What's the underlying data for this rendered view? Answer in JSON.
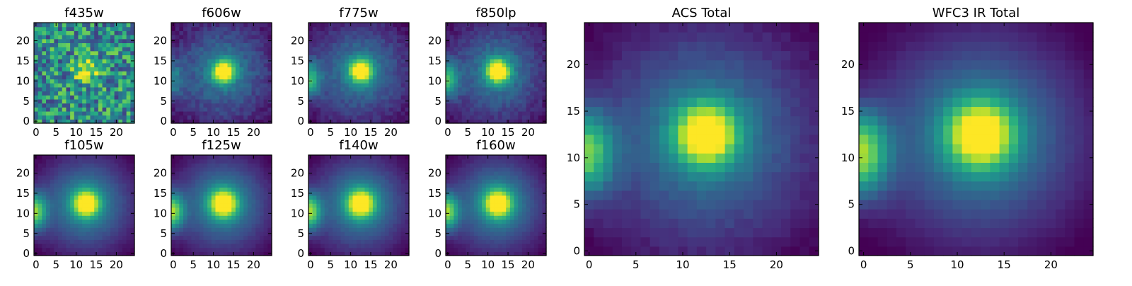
{
  "chart_data": [
    {
      "type": "heatmap",
      "title": "f435w",
      "xlim": [
        0,
        24
      ],
      "ylim": [
        0,
        24
      ],
      "xticks": [
        "0",
        "5",
        "10",
        "15",
        "20"
      ],
      "yticks": [
        "0",
        "5",
        "10",
        "15",
        "20"
      ],
      "colormap": "viridis",
      "grid": false,
      "content": {
        "src_x": 12.5,
        "src_y": 12.5,
        "src_sigma": 2.0,
        "src_amp": 0.55,
        "neighbor_amp": 0.0,
        "noise": 0.62,
        "background": 0.5,
        "halo": 0.0
      }
    },
    {
      "type": "heatmap",
      "title": "f606w",
      "xlim": [
        0,
        24
      ],
      "ylim": [
        0,
        24
      ],
      "xticks": [
        "0",
        "5",
        "10",
        "15",
        "20"
      ],
      "yticks": [
        "0",
        "5",
        "10",
        "15",
        "20"
      ],
      "colormap": "viridis",
      "grid": false,
      "content": {
        "src_x": 12.5,
        "src_y": 12.5,
        "src_sigma": 1.9,
        "src_amp": 0.85,
        "neighbor_amp": 0.35,
        "noise": 0.12,
        "background": 0.18,
        "halo": 0.25
      }
    },
    {
      "type": "heatmap",
      "title": "f775w",
      "xlim": [
        0,
        24
      ],
      "ylim": [
        0,
        24
      ],
      "xticks": [
        "0",
        "5",
        "10",
        "15",
        "20"
      ],
      "yticks": [
        "0",
        "5",
        "10",
        "15",
        "20"
      ],
      "colormap": "viridis",
      "grid": false,
      "content": {
        "src_x": 12.5,
        "src_y": 12.5,
        "src_sigma": 1.9,
        "src_amp": 0.85,
        "neighbor_amp": 0.55,
        "noise": 0.1,
        "background": 0.18,
        "halo": 0.25
      }
    },
    {
      "type": "heatmap",
      "title": "f850lp",
      "xlim": [
        0,
        24
      ],
      "ylim": [
        0,
        24
      ],
      "xticks": [
        "0",
        "5",
        "10",
        "15",
        "20"
      ],
      "yticks": [
        "0",
        "5",
        "10",
        "15",
        "20"
      ],
      "colormap": "viridis",
      "grid": false,
      "content": {
        "src_x": 12.5,
        "src_y": 12.5,
        "src_sigma": 2.0,
        "src_amp": 0.85,
        "neighbor_amp": 0.6,
        "noise": 0.1,
        "background": 0.18,
        "halo": 0.25
      }
    },
    {
      "type": "heatmap",
      "title": "f105w",
      "xlim": [
        0,
        24
      ],
      "ylim": [
        0,
        24
      ],
      "xticks": [
        "0",
        "5",
        "10",
        "15",
        "20"
      ],
      "yticks": [
        "0",
        "5",
        "10",
        "15",
        "20"
      ],
      "colormap": "viridis",
      "grid": false,
      "content": {
        "src_x": 12.5,
        "src_y": 12.5,
        "src_sigma": 2.2,
        "src_amp": 0.8,
        "neighbor_amp": 0.75,
        "noise": 0.03,
        "background": 0.15,
        "halo": 0.35
      }
    },
    {
      "type": "heatmap",
      "title": "f125w",
      "xlim": [
        0,
        24
      ],
      "ylim": [
        0,
        24
      ],
      "xticks": [
        "0",
        "5",
        "10",
        "15",
        "20"
      ],
      "yticks": [
        "0",
        "5",
        "10",
        "15",
        "20"
      ],
      "colormap": "viridis",
      "grid": false,
      "content": {
        "src_x": 12.5,
        "src_y": 12.5,
        "src_sigma": 2.3,
        "src_amp": 0.8,
        "neighbor_amp": 0.78,
        "noise": 0.03,
        "background": 0.15,
        "halo": 0.35
      }
    },
    {
      "type": "heatmap",
      "title": "f140w",
      "xlim": [
        0,
        24
      ],
      "ylim": [
        0,
        24
      ],
      "xticks": [
        "0",
        "5",
        "10",
        "15",
        "20"
      ],
      "yticks": [
        "0",
        "5",
        "10",
        "15",
        "20"
      ],
      "colormap": "viridis",
      "grid": false,
      "content": {
        "src_x": 12.5,
        "src_y": 12.5,
        "src_sigma": 2.3,
        "src_amp": 0.8,
        "neighbor_amp": 0.78,
        "noise": 0.03,
        "background": 0.15,
        "halo": 0.35
      }
    },
    {
      "type": "heatmap",
      "title": "f160w",
      "xlim": [
        0,
        24
      ],
      "ylim": [
        0,
        24
      ],
      "xticks": [
        "0",
        "5",
        "10",
        "15",
        "20"
      ],
      "yticks": [
        "0",
        "5",
        "10",
        "15",
        "20"
      ],
      "colormap": "viridis",
      "grid": false,
      "content": {
        "src_x": 12.5,
        "src_y": 12.5,
        "src_sigma": 2.3,
        "src_amp": 0.8,
        "neighbor_amp": 0.78,
        "noise": 0.03,
        "background": 0.15,
        "halo": 0.35
      }
    },
    {
      "type": "heatmap",
      "title": "ACS Total",
      "xlim": [
        0,
        24
      ],
      "ylim": [
        0,
        24
      ],
      "xticks": [
        "0",
        "5",
        "10",
        "15",
        "20"
      ],
      "yticks": [
        "0",
        "5",
        "10",
        "15",
        "20"
      ],
      "colormap": "viridis",
      "grid": false,
      "content": {
        "src_x": 12.5,
        "src_y": 12.5,
        "src_sigma": 2.2,
        "src_amp": 0.85,
        "neighbor_amp": 0.7,
        "noise": 0.05,
        "background": 0.15,
        "halo": 0.3
      }
    },
    {
      "type": "heatmap",
      "title": "WFC3 IR Total",
      "xlim": [
        0,
        24
      ],
      "ylim": [
        0,
        24
      ],
      "xticks": [
        "0",
        "5",
        "10",
        "15",
        "20"
      ],
      "yticks": [
        "0",
        "5",
        "10",
        "15",
        "20"
      ],
      "colormap": "viridis",
      "grid": false,
      "content": {
        "src_x": 12.5,
        "src_y": 12.5,
        "src_sigma": 2.4,
        "src_amp": 0.8,
        "neighbor_amp": 0.8,
        "noise": 0.02,
        "background": 0.12,
        "halo": 0.35
      }
    }
  ]
}
